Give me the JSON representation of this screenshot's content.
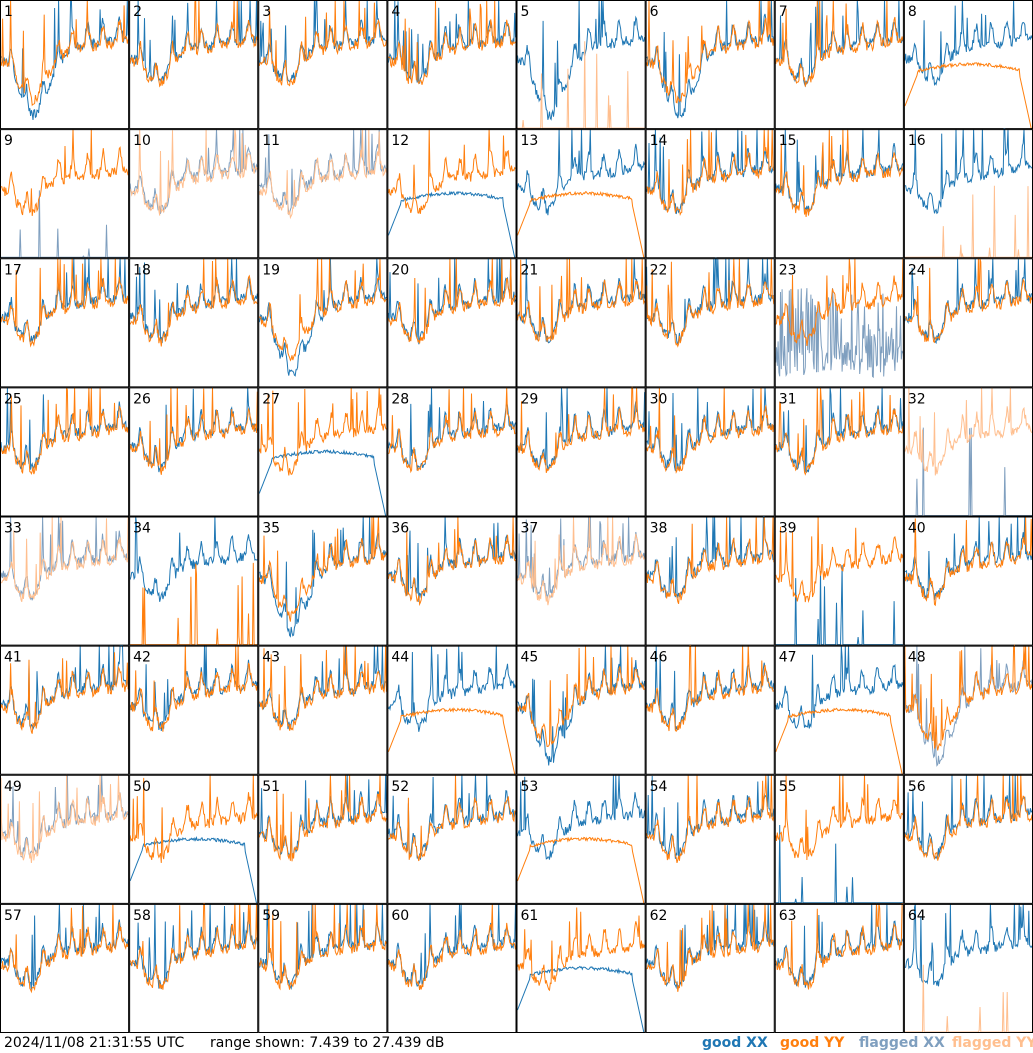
{
  "footer": {
    "timestamp": "2024/11/08 21:31:55 UTC",
    "range": "range shown: 7.439 to 27.439 dB"
  },
  "legend": [
    {
      "key": "good_xx",
      "label": "good XX",
      "color": "#1f77b4"
    },
    {
      "key": "good_yy",
      "label": "good YY",
      "color": "#ff7f0e"
    },
    {
      "key": "flagged_xx",
      "label": "flagged XX",
      "color": "#7f9fbf"
    },
    {
      "key": "flagged_yy",
      "label": "flagged YY",
      "color": "#ffbf8f"
    }
  ],
  "chart_data": {
    "type": "line",
    "grid": {
      "rows": 8,
      "cols": 8
    },
    "ylim": [
      7.439,
      27.439
    ],
    "yunit": "dB",
    "panels": [
      {
        "label": "1",
        "xx": "good",
        "yy": "good",
        "shape": "dip"
      },
      {
        "label": "2",
        "xx": "good",
        "yy": "good",
        "shape": "normal"
      },
      {
        "label": "3",
        "xx": "good",
        "yy": "good",
        "shape": "normal"
      },
      {
        "label": "4",
        "xx": "good",
        "yy": "good",
        "shape": "normal"
      },
      {
        "label": "5",
        "xx": "good",
        "yy": "flagged",
        "shape": "xx_dip_yy_spikes"
      },
      {
        "label": "6",
        "xx": "good",
        "yy": "good",
        "shape": "dip"
      },
      {
        "label": "7",
        "xx": "good",
        "yy": "good",
        "shape": "normal"
      },
      {
        "label": "8",
        "xx": "good",
        "yy": "good",
        "shape": "flat_yy"
      },
      {
        "label": "9",
        "xx": "flagged",
        "yy": "good",
        "shape": "xx_spikes"
      },
      {
        "label": "10",
        "xx": "flagged",
        "yy": "flagged",
        "shape": "normal"
      },
      {
        "label": "11",
        "xx": "flagged",
        "yy": "flagged",
        "shape": "normal"
      },
      {
        "label": "12",
        "xx": "good",
        "yy": "good",
        "shape": "flat_xx"
      },
      {
        "label": "13",
        "xx": "good",
        "yy": "good",
        "shape": "flat_yy"
      },
      {
        "label": "14",
        "xx": "good",
        "yy": "good",
        "shape": "normal"
      },
      {
        "label": "15",
        "xx": "good",
        "yy": "good",
        "shape": "normal"
      },
      {
        "label": "16",
        "xx": "good",
        "yy": "flagged",
        "shape": "xx_flat_yy_spikes"
      },
      {
        "label": "17",
        "xx": "good",
        "yy": "good",
        "shape": "normal"
      },
      {
        "label": "18",
        "xx": "good",
        "yy": "good",
        "shape": "normal"
      },
      {
        "label": "19",
        "xx": "good",
        "yy": "good",
        "shape": "dip"
      },
      {
        "label": "20",
        "xx": "good",
        "yy": "good",
        "shape": "normal"
      },
      {
        "label": "21",
        "xx": "good",
        "yy": "good",
        "shape": "normal"
      },
      {
        "label": "22",
        "xx": "good",
        "yy": "good",
        "shape": "normal"
      },
      {
        "label": "23",
        "xx": "flagged",
        "yy": "good",
        "shape": "xx_noise"
      },
      {
        "label": "24",
        "xx": "good",
        "yy": "good",
        "shape": "normal"
      },
      {
        "label": "25",
        "xx": "good",
        "yy": "good",
        "shape": "normal"
      },
      {
        "label": "26",
        "xx": "good",
        "yy": "good",
        "shape": "normal"
      },
      {
        "label": "27",
        "xx": "good",
        "yy": "good",
        "shape": "flat_xx"
      },
      {
        "label": "28",
        "xx": "good",
        "yy": "good",
        "shape": "normal"
      },
      {
        "label": "29",
        "xx": "good",
        "yy": "good",
        "shape": "normal"
      },
      {
        "label": "30",
        "xx": "good",
        "yy": "good",
        "shape": "normal"
      },
      {
        "label": "31",
        "xx": "good",
        "yy": "good",
        "shape": "normal"
      },
      {
        "label": "32",
        "xx": "flagged",
        "yy": "flagged",
        "shape": "yy_only"
      },
      {
        "label": "33",
        "xx": "flagged",
        "yy": "flagged",
        "shape": "normal"
      },
      {
        "label": "34",
        "xx": "good",
        "yy": "good",
        "shape": "yy_spikes"
      },
      {
        "label": "35",
        "xx": "good",
        "yy": "good",
        "shape": "dip"
      },
      {
        "label": "36",
        "xx": "good",
        "yy": "good",
        "shape": "normal"
      },
      {
        "label": "37",
        "xx": "flagged",
        "yy": "flagged",
        "shape": "normal"
      },
      {
        "label": "38",
        "xx": "good",
        "yy": "good",
        "shape": "normal"
      },
      {
        "label": "39",
        "xx": "good",
        "yy": "good",
        "shape": "yy_only"
      },
      {
        "label": "40",
        "xx": "good",
        "yy": "good",
        "shape": "normal"
      },
      {
        "label": "41",
        "xx": "good",
        "yy": "good",
        "shape": "normal"
      },
      {
        "label": "42",
        "xx": "good",
        "yy": "good",
        "shape": "normal"
      },
      {
        "label": "43",
        "xx": "good",
        "yy": "good",
        "shape": "normal"
      },
      {
        "label": "44",
        "xx": "good",
        "yy": "good",
        "shape": "flat_yy"
      },
      {
        "label": "45",
        "xx": "good",
        "yy": "good",
        "shape": "dip"
      },
      {
        "label": "46",
        "xx": "good",
        "yy": "good",
        "shape": "normal"
      },
      {
        "label": "47",
        "xx": "good",
        "yy": "good",
        "shape": "flat_yy"
      },
      {
        "label": "48",
        "xx": "flagged",
        "yy": "good",
        "shape": "dip"
      },
      {
        "label": "49",
        "xx": "flagged",
        "yy": "flagged",
        "shape": "normal"
      },
      {
        "label": "50",
        "xx": "good",
        "yy": "good",
        "shape": "flat_xx"
      },
      {
        "label": "51",
        "xx": "good",
        "yy": "good",
        "shape": "normal"
      },
      {
        "label": "52",
        "xx": "good",
        "yy": "good",
        "shape": "normal"
      },
      {
        "label": "53",
        "xx": "good",
        "yy": "good",
        "shape": "flat_yy"
      },
      {
        "label": "54",
        "xx": "good",
        "yy": "good",
        "shape": "normal"
      },
      {
        "label": "55",
        "xx": "good",
        "yy": "good",
        "shape": "xx_spikes"
      },
      {
        "label": "56",
        "xx": "good",
        "yy": "good",
        "shape": "normal"
      },
      {
        "label": "57",
        "xx": "good",
        "yy": "good",
        "shape": "normal"
      },
      {
        "label": "58",
        "xx": "good",
        "yy": "good",
        "shape": "normal"
      },
      {
        "label": "59",
        "xx": "good",
        "yy": "good",
        "shape": "normal"
      },
      {
        "label": "60",
        "xx": "good",
        "yy": "good",
        "shape": "normal"
      },
      {
        "label": "61",
        "xx": "good",
        "yy": "good",
        "shape": "flat_xx"
      },
      {
        "label": "62",
        "xx": "good",
        "yy": "good",
        "shape": "normal"
      },
      {
        "label": "63",
        "xx": "good",
        "yy": "good",
        "shape": "normal"
      },
      {
        "label": "64",
        "xx": "good",
        "yy": "flagged",
        "shape": "xx_flat_yy_spikes"
      }
    ]
  }
}
